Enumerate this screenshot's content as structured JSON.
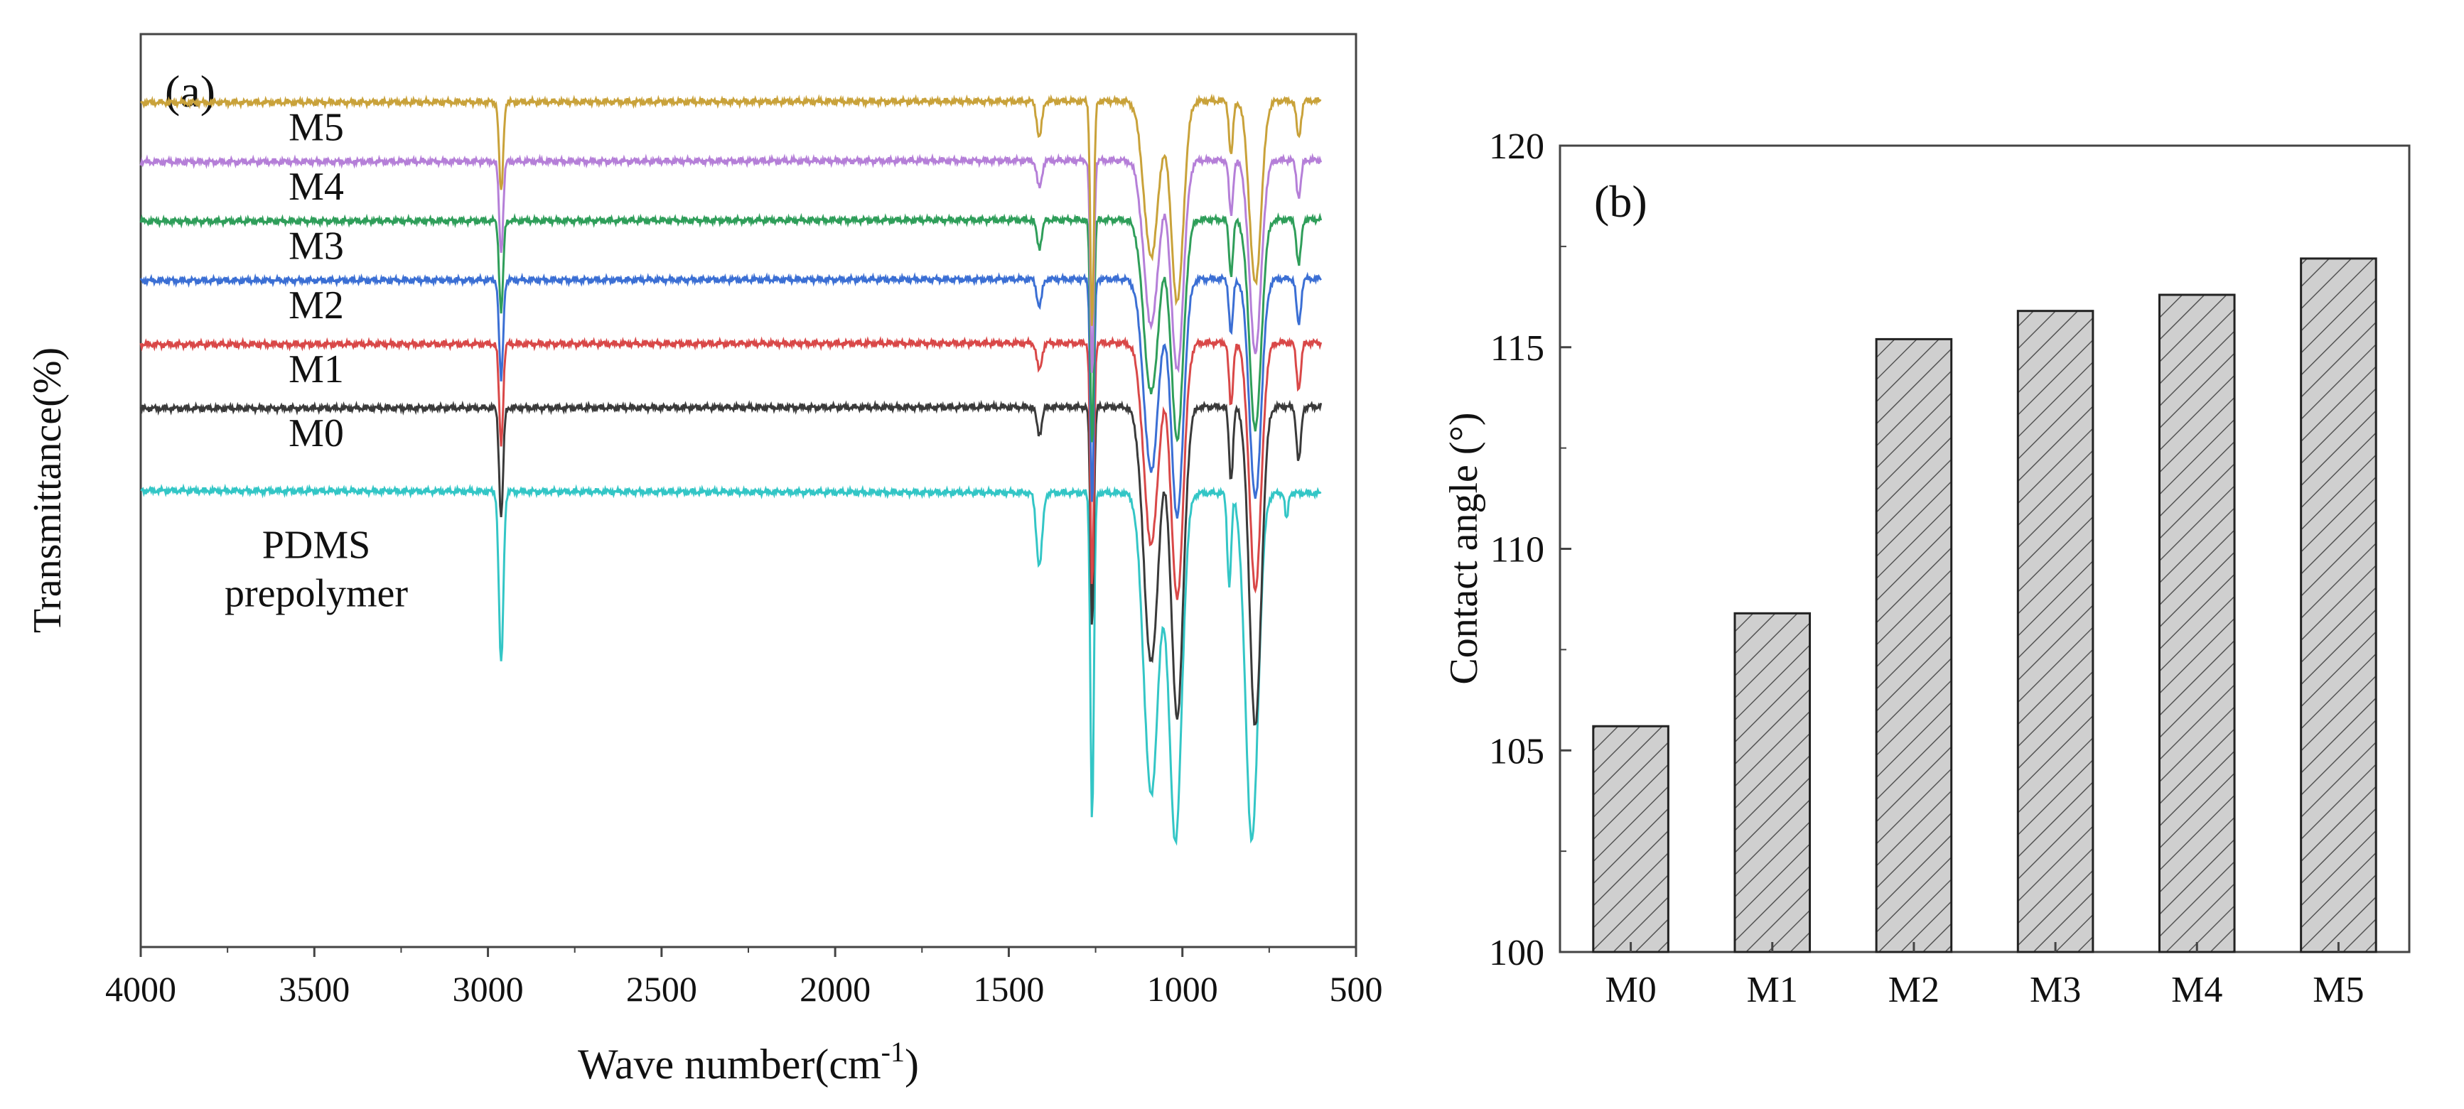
{
  "chart_data": [
    {
      "panel_label": "(a)",
      "type": "line",
      "title": "",
      "xlabel": "Wave number(cm",
      "xlabel_superscript": "-1",
      "xlabel_suffix": ")",
      "ylabel": "Transmittance(%)",
      "xlim": [
        4000,
        500
      ],
      "xticks": [
        "4000",
        "3500",
        "3000",
        "2500",
        "2000",
        "1500",
        "1000",
        "500"
      ],
      "xtick_values": [
        4000,
        3500,
        3000,
        2500,
        2000,
        1500,
        1000,
        500
      ],
      "y_units": "arbitrary, stacked offsets (0 = bottom axis, 100 = top axis)",
      "grid": false,
      "series": [
        {
          "name": "PDMS prepolymer",
          "label_lines": [
            "PDMS",
            "prepolymer"
          ],
          "color": "#33c6c6",
          "baseline": 50.0,
          "drift": -0.3,
          "end_offset": 0,
          "peaks": [
            [
              2962,
              19,
              9
            ],
            [
              1412,
              8,
              12
            ],
            [
              1260,
              36,
              7
            ],
            [
              1090,
              33,
              30
            ],
            [
              1020,
              38,
              26
            ],
            [
              865,
              10,
              8
            ],
            [
              800,
              38,
              26
            ],
            [
              700,
              3,
              6
            ]
          ]
        },
        {
          "name": "M0",
          "color": "#3a3a3a",
          "baseline": 59.0,
          "drift": 0.2,
          "end_offset": 0,
          "peaks": [
            [
              2962,
              12,
              8
            ],
            [
              1412,
              3,
              10
            ],
            [
              1260,
              24,
              7
            ],
            [
              1090,
              28,
              30
            ],
            [
              1015,
              34,
              25
            ],
            [
              860,
              8,
              8
            ],
            [
              790,
              35,
              24
            ],
            [
              665,
              6,
              9
            ]
          ]
        },
        {
          "name": "M1",
          "color": "#d94848",
          "baseline": 66.0,
          "drift": 0.2,
          "end_offset": 0,
          "peaks": [
            [
              2962,
              11,
              8
            ],
            [
              1412,
              3,
              10
            ],
            [
              1260,
              27,
              7
            ],
            [
              1090,
              22,
              30
            ],
            [
              1015,
              28,
              25
            ],
            [
              860,
              7,
              8
            ],
            [
              790,
              27,
              24
            ],
            [
              665,
              5,
              9
            ]
          ]
        },
        {
          "name": "M2",
          "color": "#3b6fd4",
          "baseline": 73.0,
          "drift": 0.2,
          "end_offset": 0,
          "peaks": [
            [
              2962,
              11,
              8
            ],
            [
              1412,
              3,
              10
            ],
            [
              1260,
              25,
              7
            ],
            [
              1090,
              21,
              30
            ],
            [
              1015,
              26,
              25
            ],
            [
              860,
              6,
              8
            ],
            [
              790,
              24,
              24
            ],
            [
              665,
              5,
              9
            ]
          ]
        },
        {
          "name": "M3",
          "color": "#2f9e5a",
          "baseline": 79.5,
          "drift": 0.2,
          "end_offset": 0,
          "peaks": [
            [
              2962,
              10,
              8
            ],
            [
              1412,
              3,
              10
            ],
            [
              1260,
              25,
              7
            ],
            [
              1090,
              19,
              30
            ],
            [
              1015,
              24,
              25
            ],
            [
              860,
              6,
              8
            ],
            [
              790,
              23,
              24
            ],
            [
              665,
              5,
              9
            ]
          ]
        },
        {
          "name": "M4",
          "color": "#b57fd8",
          "baseline": 86.0,
          "drift": 0.2,
          "end_offset": 0,
          "peaks": [
            [
              2962,
              10,
              8
            ],
            [
              1412,
              3,
              10
            ],
            [
              1260,
              24,
              7
            ],
            [
              1090,
              18,
              30
            ],
            [
              1015,
              23,
              25
            ],
            [
              860,
              6,
              8
            ],
            [
              790,
              21,
              24
            ],
            [
              665,
              4,
              9
            ]
          ]
        },
        {
          "name": "M5",
          "color": "#c9a23a",
          "baseline": 92.5,
          "drift": 0.2,
          "end_offset": 0,
          "peaks": [
            [
              2962,
              10,
              8
            ],
            [
              1412,
              4,
              10
            ],
            [
              1260,
              25,
              7
            ],
            [
              1090,
              17,
              30
            ],
            [
              1015,
              22,
              25
            ],
            [
              860,
              6,
              8
            ],
            [
              790,
              20,
              24
            ],
            [
              665,
              4,
              9
            ]
          ]
        }
      ]
    },
    {
      "panel_label": "(b)",
      "type": "bar",
      "title": "",
      "xlabel": "",
      "ylabel": "Contact angle (°)",
      "categories": [
        "M0",
        "M1",
        "M2",
        "M3",
        "M4",
        "M5"
      ],
      "values": [
        105.6,
        108.4,
        115.2,
        115.9,
        116.3,
        117.2
      ],
      "ylim": [
        100,
        120
      ],
      "yticks": [
        "100",
        "105",
        "110",
        "115",
        "120"
      ],
      "ytick_values": [
        100,
        105,
        110,
        115,
        120
      ],
      "bar_fill": "#cccccc",
      "bar_hatch": "diagonal",
      "grid": false
    }
  ]
}
